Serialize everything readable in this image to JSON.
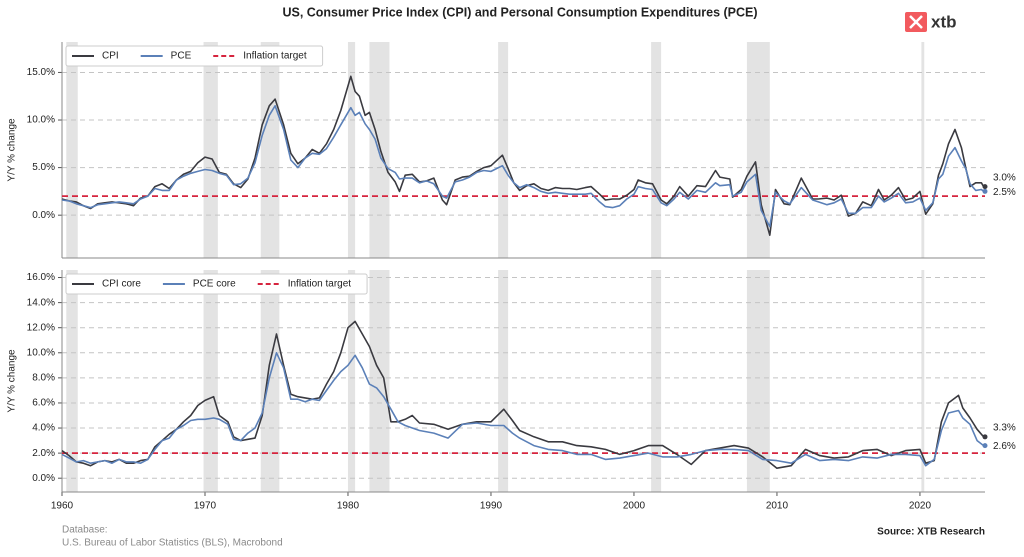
{
  "title": "US, Consumer Price Index (CPI) and Personal Consumption Expenditures (PCE)",
  "logo": "xtb",
  "footer": {
    "database": "Database:",
    "database_source": "U.S. Bureau of Labor Statistics (BLS), Macrobond",
    "source": "Source: XTB Research"
  },
  "recessions": [
    [
      1960.3,
      1961.1
    ],
    [
      1969.9,
      1970.9
    ],
    [
      1973.9,
      1975.2
    ],
    [
      1980.0,
      1980.5
    ],
    [
      1981.5,
      1982.9
    ],
    [
      1990.5,
      1991.2
    ],
    [
      2001.2,
      2001.9
    ],
    [
      2007.9,
      2009.5
    ],
    [
      2020.1,
      2020.3
    ]
  ],
  "chart_data": [
    {
      "type": "line",
      "ylabel": "Y/Y % change",
      "xlim": [
        1960,
        2024.55
      ],
      "ylim": [
        -4.5,
        18.2
      ],
      "yticks": [
        {
          "value": 0,
          "label": "0.0%"
        },
        {
          "value": 5,
          "label": "5.0%"
        },
        {
          "value": 10,
          "label": "10.0%"
        },
        {
          "value": 15,
          "label": "15.0%"
        }
      ],
      "grid": true,
      "legend": "upper left",
      "x": [
        1960,
        1960.5,
        1961,
        1961.5,
        1962,
        1962.5,
        1963,
        1963.5,
        1964,
        1964.5,
        1965,
        1965.5,
        1966,
        1966.5,
        1967,
        1967.5,
        1968,
        1968.5,
        1969,
        1969.5,
        1970,
        1970.5,
        1971,
        1971.5,
        1972,
        1972.5,
        1973,
        1973.5,
        1974,
        1974.5,
        1974.9,
        1975.5,
        1976,
        1976.5,
        1977,
        1977.5,
        1978,
        1978.5,
        1979,
        1979.5,
        1980.2,
        1980.5,
        1980.8,
        1981.2,
        1981.5,
        1981.9,
        1982.3,
        1982.8,
        1983.3,
        1983.6,
        1984,
        1984.5,
        1985,
        1985.5,
        1986,
        1986.6,
        1986.9,
        1987.5,
        1988,
        1988.5,
        1989,
        1989.5,
        1990,
        1990.8,
        1991.2,
        1991.6,
        1992,
        1992.5,
        1993,
        1993.5,
        1994,
        1994.5,
        1995,
        1995.5,
        1996,
        1996.6,
        1997,
        1997.6,
        1998,
        1998.5,
        1999,
        1999.5,
        2000,
        2000.3,
        2000.8,
        2001.3,
        2001.9,
        2002.3,
        2002.8,
        2003.2,
        2003.8,
        2004.4,
        2005,
        2005.7,
        2006,
        2006.7,
        2006.9,
        2007.5,
        2007.9,
        2008.5,
        2008.9,
        2009.5,
        2009.9,
        2010.5,
        2010.9,
        2011.7,
        2012.5,
        2012.9,
        2013.5,
        2014,
        2014.5,
        2015,
        2015.5,
        2016,
        2016.6,
        2017.1,
        2017.5,
        2018,
        2018.5,
        2019,
        2019.5,
        2020,
        2020.4,
        2020.9,
        2021.3,
        2021.6,
        2022,
        2022.45,
        2022.9,
        2023.2,
        2023.5,
        2023.9,
        2024.3,
        2024.45
      ],
      "series": [
        {
          "name": "CPI",
          "color": "#3a3a40",
          "values": [
            1.7,
            1.5,
            1.4,
            1.0,
            0.7,
            1.2,
            1.3,
            1.4,
            1.3,
            1.2,
            1.0,
            1.8,
            2.0,
            3.0,
            3.3,
            2.8,
            3.7,
            4.3,
            4.6,
            5.5,
            6.1,
            5.9,
            4.5,
            4.3,
            3.3,
            2.9,
            3.8,
            6.0,
            9.5,
            11.5,
            12.2,
            9.5,
            6.5,
            5.4,
            6.0,
            6.9,
            6.5,
            7.5,
            9.0,
            11.0,
            14.6,
            13.0,
            12.5,
            10.5,
            10.8,
            9.0,
            6.7,
            4.5,
            3.5,
            2.5,
            4.2,
            4.3,
            3.5,
            3.6,
            3.9,
            1.6,
            1.1,
            3.7,
            4.0,
            4.1,
            4.6,
            5.0,
            5.2,
            6.3,
            4.9,
            3.4,
            2.6,
            3.1,
            3.3,
            2.8,
            2.6,
            2.9,
            2.8,
            2.8,
            2.7,
            2.9,
            3.0,
            2.2,
            1.6,
            1.7,
            1.7,
            2.1,
            2.7,
            3.7,
            3.4,
            3.3,
            1.6,
            1.2,
            2.0,
            3.0,
            2.0,
            3.1,
            3.0,
            4.7,
            4.0,
            3.8,
            1.9,
            2.7,
            4.1,
            5.6,
            1.1,
            -2.1,
            2.7,
            1.2,
            1.1,
            3.9,
            1.7,
            1.7,
            1.8,
            1.6,
            2.1,
            -0.1,
            0.2,
            1.4,
            1.0,
            2.7,
            1.6,
            2.1,
            2.9,
            1.6,
            1.8,
            2.5,
            0.1,
            1.2,
            4.2,
            5.4,
            7.5,
            9.0,
            7.1,
            5.0,
            3.0,
            3.4,
            3.4,
            3.0
          ]
        },
        {
          "name": "PCE",
          "color": "#5b80b8",
          "values": [
            1.6,
            1.5,
            1.2,
            1.0,
            0.8,
            1.1,
            1.2,
            1.3,
            1.4,
            1.3,
            1.2,
            1.7,
            2.0,
            2.8,
            2.6,
            2.6,
            3.7,
            4.1,
            4.4,
            4.6,
            4.8,
            4.7,
            4.4,
            4.2,
            3.2,
            3.3,
            3.9,
            5.5,
            8.4,
            10.5,
            11.5,
            9.0,
            5.8,
            5.0,
            6.0,
            6.5,
            6.4,
            7.0,
            8.2,
            9.5,
            11.3,
            10.5,
            10.8,
            9.6,
            9.0,
            8.0,
            6.0,
            4.9,
            4.5,
            3.8,
            3.9,
            3.9,
            3.4,
            3.6,
            3.3,
            2.0,
            1.8,
            3.5,
            3.7,
            4.0,
            4.5,
            4.7,
            4.6,
            5.2,
            4.2,
            3.4,
            2.9,
            3.2,
            2.9,
            2.5,
            2.3,
            2.4,
            2.3,
            2.2,
            2.2,
            2.2,
            2.3,
            1.4,
            0.9,
            0.8,
            1.0,
            1.7,
            2.2,
            3.0,
            2.8,
            2.7,
            1.3,
            1.0,
            1.7,
            2.4,
            1.7,
            2.6,
            2.4,
            3.4,
            3.1,
            3.2,
            2.0,
            2.4,
            3.5,
            4.3,
            0.5,
            -1.2,
            2.4,
            1.5,
            1.2,
            2.9,
            1.6,
            1.4,
            1.1,
            1.3,
            1.7,
            0.2,
            0.2,
            0.8,
            0.8,
            2.0,
            1.4,
            1.8,
            2.3,
            1.3,
            1.4,
            1.8,
            0.5,
            1.3,
            3.8,
            4.3,
            6.2,
            7.1,
            5.7,
            4.9,
            3.3,
            2.6,
            2.7,
            2.5
          ]
        }
      ],
      "target": {
        "name": "Inflation target",
        "value": 2,
        "color": "#d6243e"
      },
      "end_labels": [
        {
          "value": 3.0,
          "label": "3.0%"
        },
        {
          "value": 2.5,
          "label": "2.5%"
        }
      ]
    },
    {
      "type": "line",
      "ylabel": "Y/Y % change",
      "xlim": [
        1960,
        2024.55
      ],
      "ylim": [
        -1.1,
        16.6
      ],
      "xticks": [
        1960,
        1970,
        1980,
        1990,
        2000,
        2010,
        2020
      ],
      "yticks": [
        {
          "value": 0,
          "label": "0.0%"
        },
        {
          "value": 2,
          "label": "2.0%"
        },
        {
          "value": 4,
          "label": "4.0%"
        },
        {
          "value": 6,
          "label": "6.0%"
        },
        {
          "value": 8,
          "label": "8.0%"
        },
        {
          "value": 10,
          "label": "10.0%"
        },
        {
          "value": 12,
          "label": "12.0%"
        },
        {
          "value": 14,
          "label": "14.0%"
        },
        {
          "value": 16,
          "label": "16.0%"
        }
      ],
      "grid": true,
      "legend": "upper left",
      "x": [
        1960,
        1960.5,
        1961,
        1961.5,
        1962,
        1962.5,
        1963,
        1963.5,
        1964,
        1964.5,
        1965,
        1965.5,
        1966,
        1966.5,
        1967,
        1967.5,
        1968,
        1968.5,
        1969,
        1969.5,
        1970,
        1970.6,
        1971,
        1971.6,
        1972,
        1972.5,
        1973,
        1973.5,
        1974,
        1974.5,
        1975,
        1975.5,
        1976,
        1976.5,
        1977,
        1977.5,
        1978,
        1978.5,
        1979,
        1979.5,
        1980,
        1980.5,
        1981,
        1981.5,
        1982,
        1982.5,
        1983,
        1983.5,
        1984,
        1984.5,
        1985,
        1986,
        1987,
        1988,
        1989,
        1990,
        1990.9,
        1991.5,
        1992,
        1993,
        1994,
        1995,
        1996,
        1997,
        1998,
        1999,
        2000,
        2001,
        2002,
        2003,
        2004,
        2005,
        2006,
        2007,
        2008,
        2009,
        2010,
        2011,
        2012,
        2013,
        2014,
        2015,
        2016,
        2017,
        2018,
        2019,
        2020,
        2020.4,
        2021,
        2021.5,
        2022,
        2022.7,
        2023,
        2023.5,
        2024,
        2024.45
      ],
      "series": [
        {
          "name": "CPI core",
          "color": "#3a3a40",
          "values": [
            2.2,
            1.8,
            1.3,
            1.2,
            1.0,
            1.3,
            1.4,
            1.3,
            1.5,
            1.2,
            1.2,
            1.4,
            1.5,
            2.5,
            3.0,
            3.5,
            3.9,
            4.5,
            5.0,
            5.8,
            6.2,
            6.5,
            5.0,
            4.5,
            3.3,
            3.0,
            3.1,
            3.2,
            5.0,
            9.0,
            11.5,
            9.0,
            6.7,
            6.5,
            6.4,
            6.3,
            6.4,
            7.5,
            8.5,
            10.0,
            12.0,
            12.5,
            11.5,
            10.5,
            9.0,
            8.0,
            4.5,
            4.5,
            4.7,
            5.0,
            4.4,
            4.3,
            3.9,
            4.3,
            4.5,
            4.5,
            5.5,
            4.6,
            3.8,
            3.3,
            2.9,
            2.9,
            2.6,
            2.5,
            2.3,
            1.9,
            2.2,
            2.6,
            2.6,
            1.9,
            1.1,
            2.2,
            2.4,
            2.6,
            2.4,
            1.7,
            0.8,
            1.0,
            2.3,
            1.8,
            1.6,
            1.7,
            2.2,
            2.3,
            1.8,
            2.2,
            2.3,
            1.2,
            1.4,
            4.5,
            6.0,
            6.6,
            5.6,
            4.8,
            3.9,
            3.3
          ]
        },
        {
          "name": "PCE core",
          "color": "#5b80b8",
          "values": [
            1.9,
            1.6,
            1.3,
            1.4,
            1.2,
            1.3,
            1.4,
            1.2,
            1.5,
            1.3,
            1.3,
            1.2,
            1.5,
            2.3,
            3.0,
            3.2,
            3.9,
            4.2,
            4.6,
            4.7,
            4.7,
            4.8,
            4.7,
            4.3,
            3.1,
            3.0,
            3.6,
            4.0,
            5.2,
            8.0,
            10.0,
            8.8,
            6.3,
            6.3,
            6.1,
            6.3,
            6.2,
            7.0,
            7.8,
            8.5,
            9.0,
            9.8,
            8.8,
            7.5,
            7.2,
            6.5,
            5.5,
            4.5,
            4.2,
            4.0,
            3.8,
            3.6,
            3.2,
            4.3,
            4.4,
            4.2,
            4.2,
            3.6,
            3.2,
            2.6,
            2.3,
            2.2,
            1.9,
            1.9,
            1.5,
            1.6,
            1.8,
            2.0,
            1.7,
            1.7,
            1.9,
            2.2,
            2.3,
            2.3,
            2.2,
            1.5,
            1.4,
            1.2,
            1.9,
            1.4,
            1.5,
            1.4,
            1.7,
            1.6,
            1.9,
            1.9,
            1.8,
            1.0,
            1.5,
            3.8,
            5.2,
            5.4,
            4.8,
            4.3,
            3.0,
            2.6
          ]
        }
      ],
      "target": {
        "name": "Inflation target",
        "value": 2,
        "color": "#d6243e"
      },
      "end_labels": [
        {
          "value": 3.3,
          "label": "3.3%"
        },
        {
          "value": 2.6,
          "label": "2.6%"
        }
      ]
    }
  ]
}
